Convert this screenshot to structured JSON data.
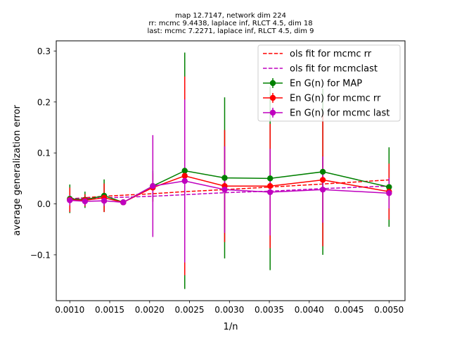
{
  "chart_data": {
    "type": "line",
    "title_lines": [
      "map 12.7147, network dim 224",
      "rr: mcmc 9.4438, laplace inf, RLCT 4.5, dim 18",
      "last: mcmc 7.2271, laplace inf, RLCT 4.5, dim 9"
    ],
    "xlabel": "1/n",
    "ylabel": "average generalization error",
    "xlim": [
      0.00083,
      0.0052
    ],
    "ylim": [
      -0.19,
      0.32
    ],
    "xticks": [
      0.001,
      0.0015,
      0.002,
      0.0025,
      0.003,
      0.0035,
      0.004,
      0.0045,
      0.005
    ],
    "xtick_labels": [
      "0.0010",
      "0.0015",
      "0.0020",
      "0.0025",
      "0.0030",
      "0.0035",
      "0.0040",
      "0.0045",
      "0.0050"
    ],
    "yticks": [
      -0.1,
      0.0,
      0.1,
      0.2,
      0.3
    ],
    "ytick_labels": [
      "−0.1",
      "0.0",
      "0.1",
      "0.2",
      "0.3"
    ],
    "grid": false,
    "legend_position": "top-right",
    "x": [
      0.001,
      0.00119,
      0.00143,
      0.00167,
      0.00204,
      0.00244,
      0.00294,
      0.00351,
      0.00417,
      0.005
    ],
    "series": [
      {
        "name": "En G(n) for MAP",
        "color": "#008000",
        "style": "errorbar",
        "values": [
          0.01,
          0.008,
          0.016,
          0.003,
          0.035,
          0.065,
          0.051,
          0.05,
          0.063,
          0.033
        ],
        "err": [
          0.028,
          0.016,
          0.032,
          0.004,
          0.03,
          0.232,
          0.158,
          0.18,
          0.163,
          0.078
        ]
      },
      {
        "name": "En G(n) for mcmc rr",
        "color": "#ff0000",
        "style": "errorbar",
        "values": [
          0.008,
          0.007,
          0.012,
          0.003,
          0.032,
          0.055,
          0.035,
          0.035,
          0.047,
          0.024
        ],
        "err": [
          0.024,
          0.012,
          0.028,
          0.004,
          0.028,
          0.195,
          0.11,
          0.122,
          0.13,
          0.055
        ]
      },
      {
        "name": "En G(n) for mcmc last",
        "color": "#bf00bf",
        "style": "errorbar",
        "values": [
          0.007,
          0.005,
          0.006,
          0.003,
          0.035,
          0.045,
          0.028,
          0.023,
          0.028,
          0.021
        ],
        "err": [
          0.01,
          0.008,
          0.01,
          0.003,
          0.1,
          0.16,
          0.085,
          0.085,
          0.065,
          0.03
        ]
      },
      {
        "name": "ols fit for mcmc rr",
        "color": "#ff0000",
        "style": "dashed",
        "values": [
          0.01,
          0.012,
          0.015,
          0.017,
          0.02,
          0.024,
          0.028,
          0.033,
          0.039,
          0.047
        ]
      },
      {
        "name": "ols fit for mcmclast",
        "color": "#bf00bf",
        "style": "dashed",
        "values": [
          0.01,
          0.011,
          0.012,
          0.013,
          0.015,
          0.018,
          0.022,
          0.025,
          0.03,
          0.035
        ]
      }
    ]
  }
}
